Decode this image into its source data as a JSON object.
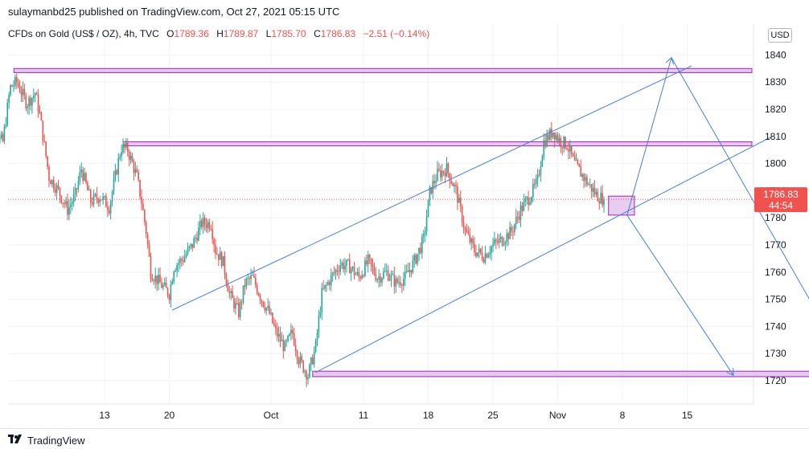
{
  "header": {
    "published_by": "sulaymanbd25 published on TradingView.com, Oct 27, 2021 05:15 UTC"
  },
  "legend": {
    "symbol": "CFDs on Gold (US$ / OZ), 4h, TVC",
    "open_label": "O",
    "open": "1789.36",
    "high_label": "H",
    "high": "1789.87",
    "low_label": "L",
    "low": "1785.70",
    "close_label": "C",
    "close": "1786.83",
    "change": "−2.51 (−0.14%)"
  },
  "currency_button": "USD",
  "price_tag": {
    "price": "1786.83",
    "countdown": "44:54"
  },
  "footer": {
    "brand": "TradingView"
  },
  "colors": {
    "up": "#26a69a",
    "down": "#ef5350",
    "drawing": "#4a7fd0",
    "zone_fill": "#e6c8f0",
    "zone_stroke": "#9c27b0",
    "price_tag": "#ef5350"
  },
  "chart_data": {
    "type": "candlestick",
    "ylim": [
      1715,
      1850
    ],
    "y_ticks": [
      1720,
      1730,
      1740,
      1750,
      1760,
      1770,
      1780,
      1790,
      1800,
      1810,
      1820,
      1830,
      1840
    ],
    "x_ticks": [
      "13",
      "20",
      "Oct",
      "11",
      "18",
      "25",
      "Nov",
      "8",
      "15"
    ],
    "x_tick_days": [
      13,
      20,
      31,
      41,
      48,
      55,
      62,
      69,
      76
    ],
    "last_price": 1786.83,
    "path": [
      [
        0.0,
        1812
      ],
      [
        2.0,
        1808
      ],
      [
        2.8,
        1828
      ],
      [
        3.5,
        1830
      ],
      [
        4.6,
        1822
      ],
      [
        5.5,
        1826
      ],
      [
        6.0,
        1818
      ],
      [
        7.0,
        1795
      ],
      [
        8.0,
        1790
      ],
      [
        9.0,
        1783
      ],
      [
        9.8,
        1788
      ],
      [
        10.5,
        1798
      ],
      [
        11.5,
        1786
      ],
      [
        12.5,
        1788
      ],
      [
        13.5,
        1784
      ],
      [
        14.8,
        1806
      ],
      [
        15.5,
        1805
      ],
      [
        16.5,
        1795
      ],
      [
        17.0,
        1786
      ],
      [
        17.5,
        1775
      ],
      [
        18.0,
        1760
      ],
      [
        19.2,
        1755
      ],
      [
        20.0,
        1752
      ],
      [
        20.5,
        1762
      ],
      [
        21.5,
        1765
      ],
      [
        22.5,
        1770
      ],
      [
        23.5,
        1778
      ],
      [
        24.5,
        1778
      ],
      [
        25.0,
        1768
      ],
      [
        25.8,
        1764
      ],
      [
        26.5,
        1752
      ],
      [
        27.5,
        1745
      ],
      [
        28.2,
        1756
      ],
      [
        29.0,
        1758
      ],
      [
        30.0,
        1750
      ],
      [
        30.8,
        1745
      ],
      [
        31.5,
        1738
      ],
      [
        32.5,
        1732
      ],
      [
        33.3,
        1738
      ],
      [
        34.0,
        1728
      ],
      [
        35.0,
        1722
      ],
      [
        35.8,
        1732
      ],
      [
        36.5,
        1752
      ],
      [
        37.5,
        1758
      ],
      [
        38.5,
        1763
      ],
      [
        39.5,
        1762
      ],
      [
        40.5,
        1758
      ],
      [
        41.5,
        1764
      ],
      [
        42.5,
        1758
      ],
      [
        43.5,
        1760
      ],
      [
        44.5,
        1756
      ],
      [
        45.5,
        1758
      ],
      [
        46.5,
        1764
      ],
      [
        47.5,
        1772
      ],
      [
        48.2,
        1790
      ],
      [
        49.0,
        1796
      ],
      [
        50.0,
        1798
      ],
      [
        51.0,
        1790
      ],
      [
        52.0,
        1775
      ],
      [
        53.0,
        1768
      ],
      [
        54.0,
        1766
      ],
      [
        55.0,
        1770
      ],
      [
        56.0,
        1772
      ],
      [
        57.0,
        1775
      ],
      [
        58.0,
        1783
      ],
      [
        59.0,
        1788
      ],
      [
        59.8,
        1793
      ],
      [
        60.5,
        1808
      ],
      [
        61.5,
        1812
      ],
      [
        62.3,
        1808
      ],
      [
        63.0,
        1807
      ],
      [
        63.8,
        1800
      ],
      [
        64.6,
        1796
      ],
      [
        65.4,
        1792
      ],
      [
        66.3,
        1788
      ],
      [
        67.0,
        1786.83
      ]
    ],
    "horizontal_zones": [
      {
        "from_day": 3.2,
        "to_day": 83,
        "low": 1833.5,
        "high": 1835
      },
      {
        "from_day": 15,
        "to_day": 83,
        "low": 1806.5,
        "high": 1808
      },
      {
        "from_day": 35.5,
        "to_day": 94,
        "low": 1721.5,
        "high": 1723.5
      }
    ],
    "box": {
      "from_day": 67.5,
      "to_day": 70.3,
      "low": 1781,
      "high": 1788
    },
    "channel_lines": [
      {
        "from": [
          20.3,
          1746
        ],
        "to": [
          76.5,
          1836
        ]
      },
      {
        "from": [
          35.8,
          1723
        ],
        "to": [
          85.2,
          1810
        ]
      }
    ],
    "arrows": [
      {
        "from": [
          69.5,
          1781
        ],
        "to": [
          74.3,
          1839
        ]
      },
      {
        "from": [
          74.3,
          1839
        ],
        "to": [
          94.0,
          1721.5
        ]
      },
      {
        "from": [
          69.5,
          1781
        ],
        "to": [
          81.0,
          1722
        ]
      }
    ]
  }
}
